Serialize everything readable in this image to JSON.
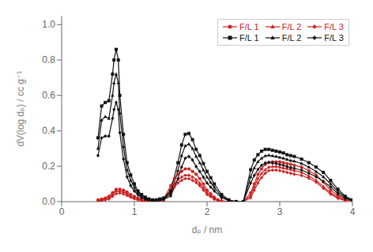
{
  "chart_data": {
    "type": "line",
    "xlabel": "dₚ / nm",
    "ylabel": "dV(log dₚ) / cc g⁻¹",
    "xlim": [
      0,
      4
    ],
    "ylim": [
      0,
      1.05
    ],
    "xticks": [
      0,
      1,
      2,
      3,
      4
    ],
    "yticks": [
      {
        "value": 0.0,
        "label": "0.0"
      },
      0.2,
      0.4,
      0.6,
      0.8,
      {
        "value": 1.0,
        "label": "1.0"
      }
    ],
    "grid": false,
    "legend": "upper right",
    "series": [
      {
        "name": "F/L 1",
        "color": "#CC2222",
        "marker": "circle",
        "x": [
          0.5,
          0.55,
          0.6,
          0.65,
          0.7,
          0.75,
          0.8,
          0.85,
          0.9,
          0.95,
          1.0,
          1.05,
          1.1,
          1.15,
          1.2,
          1.3,
          1.4,
          1.5,
          1.55,
          1.6,
          1.65,
          1.7,
          1.75,
          1.8,
          1.85,
          1.9,
          1.95,
          2.0,
          2.05,
          2.1,
          2.15,
          2.2,
          2.3,
          2.5,
          2.6,
          2.65,
          2.7,
          2.75,
          2.8,
          2.85,
          2.9,
          2.95,
          3.0,
          3.05,
          3.1,
          3.15,
          3.2,
          3.3,
          3.4,
          3.5,
          3.6,
          3.7,
          3.8,
          3.9,
          4.0
        ],
        "values": [
          0.01,
          0.015,
          0.02,
          0.03,
          0.05,
          0.07,
          0.07,
          0.065,
          0.055,
          0.04,
          0.03,
          0.02,
          0.01,
          0.005,
          0.005,
          0.005,
          0.01,
          0.09,
          0.13,
          0.155,
          0.17,
          0.185,
          0.185,
          0.17,
          0.155,
          0.13,
          0.1,
          0.065,
          0.045,
          0.025,
          0.01,
          0.005,
          0.0,
          0.0,
          0.05,
          0.1,
          0.155,
          0.185,
          0.21,
          0.22,
          0.225,
          0.225,
          0.225,
          0.22,
          0.215,
          0.21,
          0.205,
          0.195,
          0.175,
          0.15,
          0.11,
          0.065,
          0.035,
          0.01,
          0.01
        ]
      },
      {
        "name": "F/L 2",
        "color": "#CC2222",
        "marker": "triangle",
        "x": [
          0.5,
          0.55,
          0.6,
          0.65,
          0.7,
          0.75,
          0.8,
          0.85,
          0.9,
          0.95,
          1.0,
          1.05,
          1.1,
          1.15,
          1.2,
          1.3,
          1.4,
          1.5,
          1.55,
          1.6,
          1.65,
          1.7,
          1.75,
          1.8,
          1.85,
          1.9,
          1.95,
          2.0,
          2.05,
          2.1,
          2.15,
          2.2,
          2.3,
          2.5,
          2.6,
          2.65,
          2.7,
          2.75,
          2.8,
          2.85,
          2.9,
          2.95,
          3.0,
          3.05,
          3.1,
          3.15,
          3.2,
          3.3,
          3.4,
          3.5,
          3.6,
          3.7,
          3.8,
          3.9,
          4.0
        ],
        "values": [
          0.005,
          0.01,
          0.015,
          0.02,
          0.04,
          0.06,
          0.06,
          0.055,
          0.045,
          0.03,
          0.02,
          0.015,
          0.008,
          0.004,
          0.004,
          0.004,
          0.008,
          0.07,
          0.1,
          0.125,
          0.14,
          0.15,
          0.15,
          0.14,
          0.125,
          0.105,
          0.08,
          0.05,
          0.035,
          0.018,
          0.008,
          0.003,
          0.0,
          0.0,
          0.035,
          0.085,
          0.13,
          0.16,
          0.18,
          0.195,
          0.198,
          0.198,
          0.195,
          0.19,
          0.186,
          0.182,
          0.175,
          0.165,
          0.145,
          0.12,
          0.085,
          0.05,
          0.025,
          0.008,
          0.008
        ]
      },
      {
        "name": "F/L 3",
        "color": "#CC2222",
        "marker": "diamond",
        "x": [
          0.5,
          0.55,
          0.6,
          0.65,
          0.7,
          0.75,
          0.8,
          0.85,
          0.9,
          0.95,
          1.0,
          1.05,
          1.1,
          1.15,
          1.2,
          1.3,
          1.4,
          1.5,
          1.55,
          1.6,
          1.65,
          1.7,
          1.75,
          1.8,
          1.85,
          1.9,
          1.95,
          2.0,
          2.05,
          2.1,
          2.15,
          2.2,
          2.3,
          2.5,
          2.6,
          2.65,
          2.7,
          2.75,
          2.8,
          2.85,
          2.9,
          2.95,
          3.0,
          3.05,
          3.1,
          3.15,
          3.2,
          3.3,
          3.4,
          3.5,
          3.6,
          3.7,
          3.8,
          3.9,
          4.0
        ],
        "values": [
          0.003,
          0.006,
          0.01,
          0.015,
          0.03,
          0.045,
          0.048,
          0.043,
          0.035,
          0.025,
          0.016,
          0.01,
          0.006,
          0.003,
          0.003,
          0.003,
          0.006,
          0.055,
          0.082,
          0.105,
          0.12,
          0.13,
          0.13,
          0.12,
          0.108,
          0.09,
          0.065,
          0.04,
          0.028,
          0.013,
          0.006,
          0.002,
          0.0,
          0.0,
          0.022,
          0.065,
          0.105,
          0.135,
          0.16,
          0.175,
          0.178,
          0.178,
          0.175,
          0.17,
          0.165,
          0.16,
          0.155,
          0.148,
          0.132,
          0.11,
          0.075,
          0.042,
          0.018,
          0.006,
          0.006
        ]
      },
      {
        "name": "F/L 1",
        "color": "#111111",
        "marker": "square",
        "x": [
          0.5,
          0.55,
          0.6,
          0.65,
          0.7,
          0.72,
          0.75,
          0.78,
          0.8,
          0.85,
          0.9,
          0.95,
          1.0,
          1.05,
          1.1,
          1.15,
          1.2,
          1.25,
          1.3,
          1.35,
          1.4,
          1.5,
          1.6,
          1.65,
          1.7,
          1.75,
          1.8,
          1.85,
          1.9,
          1.95,
          2.0,
          2.05,
          2.1,
          2.2,
          2.3,
          2.4,
          2.5,
          2.6,
          2.65,
          2.7,
          2.75,
          2.8,
          2.85,
          2.9,
          2.95,
          3.0,
          3.05,
          3.1,
          3.15,
          3.2,
          3.3,
          3.4,
          3.5,
          3.6,
          3.7,
          3.8,
          3.9,
          4.0
        ],
        "values": [
          0.36,
          0.54,
          0.56,
          0.57,
          0.72,
          0.8,
          0.86,
          0.8,
          0.6,
          0.38,
          0.22,
          0.15,
          0.1,
          0.06,
          0.04,
          0.025,
          0.015,
          0.01,
          0.01,
          0.015,
          0.02,
          0.06,
          0.22,
          0.32,
          0.38,
          0.385,
          0.35,
          0.295,
          0.26,
          0.215,
          0.17,
          0.135,
          0.1,
          0.04,
          0.01,
          0.0,
          0.0,
          0.18,
          0.235,
          0.265,
          0.285,
          0.295,
          0.295,
          0.29,
          0.285,
          0.28,
          0.275,
          0.265,
          0.26,
          0.255,
          0.24,
          0.22,
          0.195,
          0.165,
          0.12,
          0.07,
          0.03,
          0.01
        ]
      },
      {
        "name": "F/L 2",
        "color": "#111111",
        "marker": "triangle",
        "x": [
          0.5,
          0.55,
          0.6,
          0.65,
          0.7,
          0.72,
          0.75,
          0.78,
          0.8,
          0.85,
          0.9,
          0.95,
          1.0,
          1.05,
          1.1,
          1.15,
          1.2,
          1.25,
          1.3,
          1.35,
          1.4,
          1.5,
          1.6,
          1.65,
          1.7,
          1.75,
          1.8,
          1.85,
          1.9,
          1.95,
          2.0,
          2.05,
          2.1,
          2.2,
          2.3,
          2.4,
          2.5,
          2.6,
          2.65,
          2.7,
          2.75,
          2.8,
          2.85,
          2.9,
          2.95,
          3.0,
          3.05,
          3.1,
          3.15,
          3.2,
          3.3,
          3.4,
          3.5,
          3.6,
          3.7,
          3.8,
          3.9,
          4.0
        ],
        "values": [
          0.3,
          0.46,
          0.48,
          0.47,
          0.6,
          0.67,
          0.72,
          0.67,
          0.5,
          0.31,
          0.18,
          0.12,
          0.08,
          0.05,
          0.03,
          0.018,
          0.012,
          0.008,
          0.008,
          0.012,
          0.016,
          0.045,
          0.175,
          0.26,
          0.315,
          0.325,
          0.3,
          0.255,
          0.22,
          0.178,
          0.138,
          0.108,
          0.08,
          0.03,
          0.008,
          0.0,
          0.0,
          0.14,
          0.19,
          0.225,
          0.245,
          0.258,
          0.262,
          0.258,
          0.255,
          0.25,
          0.245,
          0.238,
          0.232,
          0.228,
          0.215,
          0.195,
          0.17,
          0.14,
          0.1,
          0.056,
          0.025,
          0.008
        ]
      },
      {
        "name": "F/L 3",
        "color": "#111111",
        "marker": "diamond",
        "x": [
          0.5,
          0.55,
          0.6,
          0.65,
          0.7,
          0.72,
          0.75,
          0.78,
          0.8,
          0.85,
          0.9,
          0.95,
          1.0,
          1.05,
          1.1,
          1.15,
          1.2,
          1.25,
          1.3,
          1.35,
          1.4,
          1.5,
          1.6,
          1.65,
          1.7,
          1.75,
          1.8,
          1.85,
          1.9,
          1.95,
          2.0,
          2.05,
          2.1,
          2.2,
          2.3,
          2.4,
          2.5,
          2.6,
          2.65,
          2.7,
          2.75,
          2.8,
          2.85,
          2.9,
          2.95,
          3.0,
          3.05,
          3.1,
          3.15,
          3.2,
          3.3,
          3.4,
          3.5,
          3.6,
          3.7,
          3.8,
          3.9,
          4.0
        ],
        "values": [
          0.26,
          0.36,
          0.37,
          0.37,
          0.47,
          0.52,
          0.56,
          0.52,
          0.39,
          0.24,
          0.14,
          0.09,
          0.06,
          0.038,
          0.022,
          0.013,
          0.008,
          0.005,
          0.005,
          0.008,
          0.012,
          0.032,
          0.13,
          0.195,
          0.245,
          0.255,
          0.235,
          0.198,
          0.17,
          0.138,
          0.105,
          0.082,
          0.06,
          0.022,
          0.006,
          0.0,
          0.0,
          0.105,
          0.148,
          0.182,
          0.205,
          0.218,
          0.222,
          0.218,
          0.215,
          0.21,
          0.205,
          0.198,
          0.192,
          0.188,
          0.178,
          0.16,
          0.14,
          0.115,
          0.082,
          0.045,
          0.018,
          0.005
        ]
      }
    ]
  }
}
